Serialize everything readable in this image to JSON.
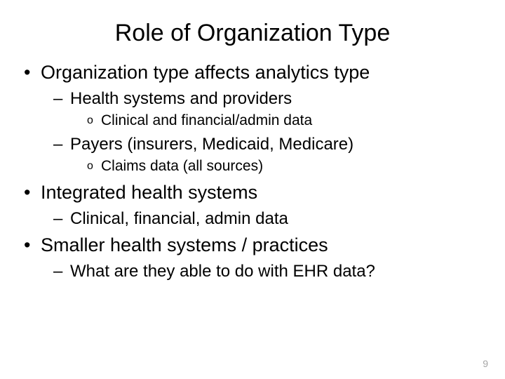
{
  "title": "Role of Organization Type",
  "title_font": "Verdana",
  "title_fontsize": 34,
  "body_font": "Arial",
  "body_fontsize_lvl1": 27,
  "body_fontsize_lvl2": 24,
  "body_fontsize_lvl3": 21,
  "background_color": "#ffffff",
  "text_color": "#000000",
  "bullets": [
    {
      "text": "Organization type affects analytics type",
      "children": [
        {
          "text": "Health systems and providers",
          "children": [
            {
              "text": "Clinical and financial/admin data"
            }
          ]
        },
        {
          "text": "Payers (insurers, Medicaid, Medicare)",
          "children": [
            {
              "text": "Claims data (all sources)"
            }
          ]
        }
      ]
    },
    {
      "text": "Integrated health systems",
      "children": [
        {
          "text": "Clinical, financial, admin data"
        }
      ]
    },
    {
      "text": "Smaller health systems / practices",
      "children": [
        {
          "text": "What are they able to do with EHR data?"
        }
      ]
    }
  ],
  "page_number": "9",
  "page_number_color": "#a6a6a6",
  "page_number_fontsize": 14,
  "slide_width": 720,
  "slide_height": 540,
  "bullet_glyph_lvl1": "•",
  "bullet_glyph_lvl2": "–",
  "bullet_glyph_lvl3": "o"
}
